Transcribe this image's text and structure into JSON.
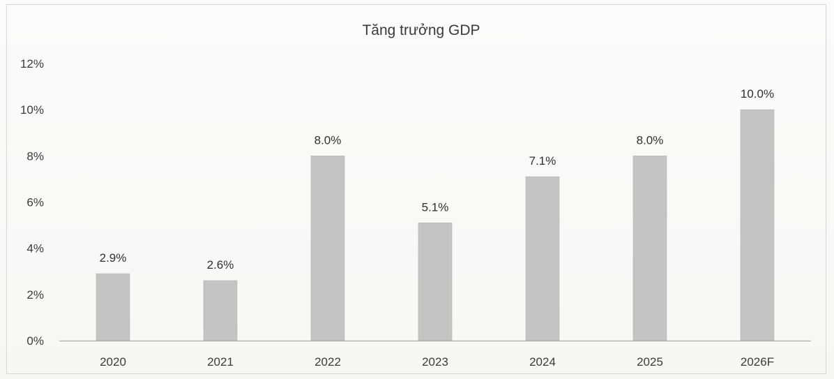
{
  "chart_data": {
    "type": "bar",
    "title": "Tăng trưởng GDP",
    "categories": [
      "2020",
      "2021",
      "2022",
      "2023",
      "2024",
      "2025",
      "2026F"
    ],
    "values": [
      2.9,
      2.6,
      8.0,
      5.1,
      7.1,
      8.0,
      10.0
    ],
    "data_labels": [
      "2.9%",
      "2.6%",
      "8.0%",
      "5.1%",
      "7.1%",
      "8.0%",
      "10.0%"
    ],
    "ylim": [
      0,
      12
    ],
    "yticks": [
      0,
      2,
      4,
      6,
      8,
      10,
      12
    ],
    "ytick_labels": [
      "0%",
      "2%",
      "4%",
      "6%",
      "8%",
      "10%",
      "12%"
    ],
    "xlabel": "",
    "ylabel": "",
    "grid": false,
    "legend": "none",
    "bar_color": "#c4c4c4",
    "axis_color": "#a8a8a8"
  }
}
